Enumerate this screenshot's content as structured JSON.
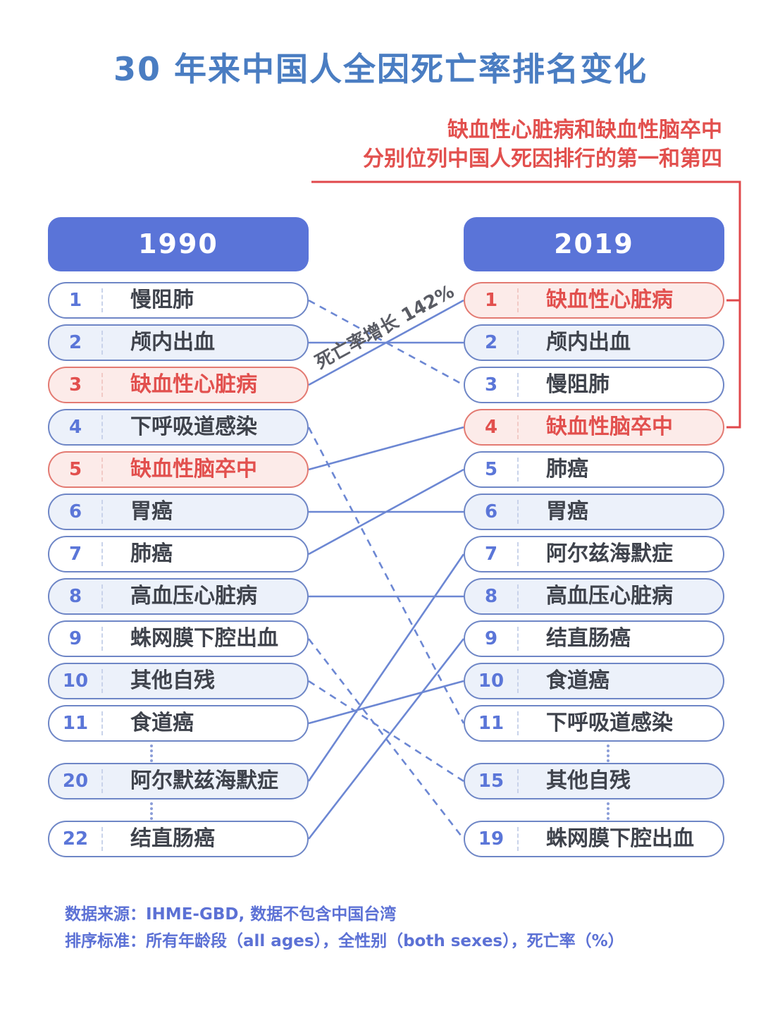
{
  "title": "30 年来中国人全因死亡率排名变化",
  "annotation": {
    "line1": "缺血性心脏病和缺血性脑卒中",
    "line2": "分别位列中国人死因排行的第一和第四",
    "bracket_ranks": [
      "1",
      "4"
    ]
  },
  "connector_label": "死亡率增长 142%",
  "columns": {
    "left": {
      "year": "1990",
      "rows": [
        {
          "rank": "1",
          "label": "慢阻肺",
          "style": "plain"
        },
        {
          "rank": "2",
          "label": "颅内出血",
          "style": "tint"
        },
        {
          "rank": "3",
          "label": "缺血性心脏病",
          "style": "red"
        },
        {
          "rank": "4",
          "label": "下呼吸道感染",
          "style": "tint"
        },
        {
          "rank": "5",
          "label": "缺血性脑卒中",
          "style": "red"
        },
        {
          "rank": "6",
          "label": "胃癌",
          "style": "tint"
        },
        {
          "rank": "7",
          "label": "肺癌",
          "style": "plain"
        },
        {
          "rank": "8",
          "label": "高血压心脏病",
          "style": "tint"
        },
        {
          "rank": "9",
          "label": "蛛网膜下腔出血",
          "style": "plain"
        },
        {
          "rank": "10",
          "label": "其他自残",
          "style": "tint"
        },
        {
          "rank": "11",
          "label": "食道癌",
          "style": "plain"
        },
        {
          "gap": true
        },
        {
          "rank": "20",
          "label": "阿尔默兹海默症",
          "style": "tint"
        },
        {
          "gap": true
        },
        {
          "rank": "22",
          "label": "结直肠癌",
          "style": "plain"
        }
      ]
    },
    "right": {
      "year": "2019",
      "rows": [
        {
          "rank": "1",
          "label": "缺血性心脏病",
          "style": "red"
        },
        {
          "rank": "2",
          "label": "颅内出血",
          "style": "tint"
        },
        {
          "rank": "3",
          "label": "慢阻肺",
          "style": "plain"
        },
        {
          "rank": "4",
          "label": "缺血性脑卒中",
          "style": "red"
        },
        {
          "rank": "5",
          "label": "肺癌",
          "style": "plain"
        },
        {
          "rank": "6",
          "label": "胃癌",
          "style": "tint"
        },
        {
          "rank": "7",
          "label": "阿尔兹海默症",
          "style": "plain"
        },
        {
          "rank": "8",
          "label": "高血压心脏病",
          "style": "tint"
        },
        {
          "rank": "9",
          "label": "结直肠癌",
          "style": "plain"
        },
        {
          "rank": "10",
          "label": "食道癌",
          "style": "tint"
        },
        {
          "rank": "11",
          "label": "下呼吸道感染",
          "style": "plain"
        },
        {
          "gap": true
        },
        {
          "rank": "15",
          "label": "其他自残",
          "style": "tint"
        },
        {
          "gap": true
        },
        {
          "rank": "19",
          "label": "蛛网膜下腔出血",
          "style": "plain"
        }
      ]
    }
  },
  "connections": [
    {
      "from": "1",
      "to": "3",
      "line": "dashed"
    },
    {
      "from": "2",
      "to": "2",
      "line": "solid"
    },
    {
      "from": "3",
      "to": "1",
      "line": "solid"
    },
    {
      "from": "4",
      "to": "11",
      "line": "dashed"
    },
    {
      "from": "5",
      "to": "4",
      "line": "solid"
    },
    {
      "from": "6",
      "to": "6",
      "line": "solid"
    },
    {
      "from": "7",
      "to": "5",
      "line": "solid"
    },
    {
      "from": "8",
      "to": "8",
      "line": "solid"
    },
    {
      "from": "9",
      "to": "19",
      "line": "dashed"
    },
    {
      "from": "10",
      "to": "15",
      "line": "dashed"
    },
    {
      "from": "11",
      "to": "10",
      "line": "solid"
    },
    {
      "from": "20",
      "to": "7",
      "line": "solid"
    },
    {
      "from": "22",
      "to": "9",
      "line": "solid"
    }
  ],
  "footer": {
    "line1": "数据来源：IHME-GBD, 数据不包含中国台湾",
    "line2": "排序标准：所有年龄段（all ages），全性别（both sexes），死亡率（%）"
  },
  "colors": {
    "title_blue": "#4a7dc2",
    "header_blue": "#5a74d8",
    "row_border_blue": "#6e86c6",
    "row_tint": "#ecf1fa",
    "rank_number_blue": "#5b76d8",
    "label_dark": "#3f434c",
    "sep_blue": "#c9d3ea",
    "sep_red": "#f2cac6",
    "red_border": "#e37a72",
    "red_fill": "#fcebe9",
    "red_text": "#e2504e",
    "line_blue": "#6c87d3",
    "annotation_red": "#e0484b",
    "footer_blue": "#5c71d5",
    "dots_blue": "#8b9dd8",
    "growth_label_gray": "#5a5c64"
  },
  "chart_data": {
    "type": "table",
    "title": "30 年来中国人全因死亡率排名变化",
    "columns": [
      "1990 排名",
      "1990 死因",
      "2019 排名",
      "2019 死因"
    ],
    "rows": [
      [
        1,
        "慢阻肺",
        3,
        "慢阻肺"
      ],
      [
        2,
        "颅内出血",
        2,
        "颅内出血"
      ],
      [
        3,
        "缺血性心脏病",
        1,
        "缺血性心脏病"
      ],
      [
        4,
        "下呼吸道感染",
        11,
        "下呼吸道感染"
      ],
      [
        5,
        "缺血性脑卒中",
        4,
        "缺血性脑卒中"
      ],
      [
        6,
        "胃癌",
        6,
        "胃癌"
      ],
      [
        7,
        "肺癌",
        5,
        "肺癌"
      ],
      [
        8,
        "高血压心脏病",
        8,
        "高血压心脏病"
      ],
      [
        9,
        "蛛网膜下腔出血",
        19,
        "蛛网膜下腔出血"
      ],
      [
        10,
        "其他自残",
        15,
        "其他自残"
      ],
      [
        11,
        "食道癌",
        10,
        "食道癌"
      ],
      [
        20,
        "阿尔默兹海默症",
        7,
        "阿尔兹海默症"
      ],
      [
        22,
        "结直肠癌",
        9,
        "结直肠癌"
      ]
    ],
    "annotations": [
      "死亡率增长 142%",
      "缺血性心脏病和缺血性脑卒中分别位列中国人死因排行的第一和第四"
    ]
  }
}
